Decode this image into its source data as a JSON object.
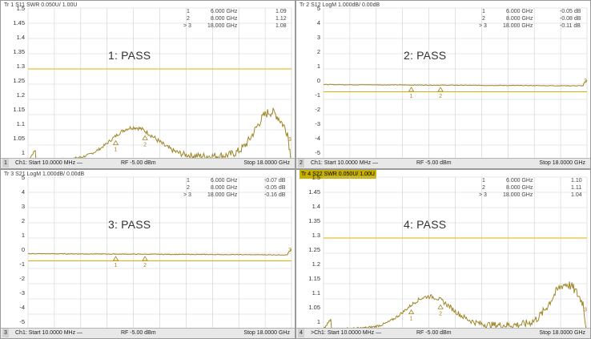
{
  "colors": {
    "trace": "#a08628",
    "limit": "#e0b100",
    "grid": "#cfcfcf",
    "active_tab": "#c8b000"
  },
  "panes": [
    {
      "id": "1",
      "trace_header": "Tr 1  S11 SWR 0.050U/  1.00U",
      "active": false,
      "pass_label": "1: PASS",
      "y_ticks": [
        "1.5",
        "1.45",
        "1.4",
        "1.35",
        "1.3",
        "1.25",
        "1.2",
        "1.15",
        "1.1",
        "1.05",
        "1"
      ],
      "markers": [
        {
          "label": "1",
          "freq": "6.000  GHz",
          "value": "1.09"
        },
        {
          "label": "2",
          "freq": "8.000  GHz",
          "value": "1.12"
        },
        {
          "label": "> 3",
          "freq": "18.000  GHz",
          "value": "1.08"
        }
      ],
      "footer": {
        "num": "1",
        "start": "Ch1:  Start  10.0000 MHz —",
        "rf": "RF   -5.00 dBm",
        "stop": "Stop  18.0000 GHz"
      }
    },
    {
      "id": "2",
      "trace_header": "Tr 2  S12 LogM 1.000dB/  0.00dB",
      "active": false,
      "pass_label": "2: PASS",
      "y_ticks": [
        "5",
        "4",
        "3",
        "2",
        "1",
        "0",
        "-1",
        "-2",
        "-3",
        "-4",
        "-5"
      ],
      "markers": [
        {
          "label": "1",
          "freq": "6.000  GHz",
          "value": "-0.05 dB"
        },
        {
          "label": "2",
          "freq": "8.000  GHz",
          "value": "-0.08 dB"
        },
        {
          "label": "> 3",
          "freq": "18.000  GHz",
          "value": "-0.11 dB"
        }
      ],
      "footer": {
        "num": "2",
        "start": "Ch1:  Start  10.0000 MHz —",
        "rf": "RF   -5.00 dBm",
        "stop": "Stop  18.0000 GHz"
      }
    },
    {
      "id": "3",
      "trace_header": "Tr 3  S21 LogM 1.000dB/  0.00dB",
      "active": false,
      "pass_label": "3: PASS",
      "y_ticks": [
        "5",
        "4",
        "3",
        "2",
        "1",
        "0",
        "-1",
        "-2",
        "-3",
        "-4",
        "-5"
      ],
      "markers": [
        {
          "label": "1",
          "freq": "6.000  GHz",
          "value": "-0.07 dB"
        },
        {
          "label": "2",
          "freq": "8.000  GHz",
          "value": "-0.05 dB"
        },
        {
          "label": "> 3",
          "freq": "18.000  GHz",
          "value": "-0.16 dB"
        }
      ],
      "footer": {
        "num": "3",
        "start": "Ch1:  Start  10.0000 MHz —",
        "rf": "RF   -5.00 dBm",
        "stop": "Stop  18.0000 GHz"
      }
    },
    {
      "id": "4",
      "trace_header": "Tr 4  S22 SWR 0.050U/  1.00U",
      "active": true,
      "pass_label": "4: PASS",
      "y_ticks": [
        "1.5",
        "1.45",
        "1.4",
        "1.35",
        "1.3",
        "1.25",
        "1.2",
        "1.15",
        "1.1",
        "1.05",
        "1"
      ],
      "markers": [
        {
          "label": "1",
          "freq": "6.000  GHz",
          "value": "1.10"
        },
        {
          "label": "2",
          "freq": "8.000  GHz",
          "value": "1.11"
        },
        {
          "label": "> 3",
          "freq": "18.000  GHz",
          "value": "1.04"
        }
      ],
      "footer": {
        "num": "4",
        "start": ">Ch1:  Start  10.0000 MHz —",
        "rf": "RF   -5.00 dBm",
        "stop": "Stop  18.0000 GHz"
      }
    }
  ]
}
